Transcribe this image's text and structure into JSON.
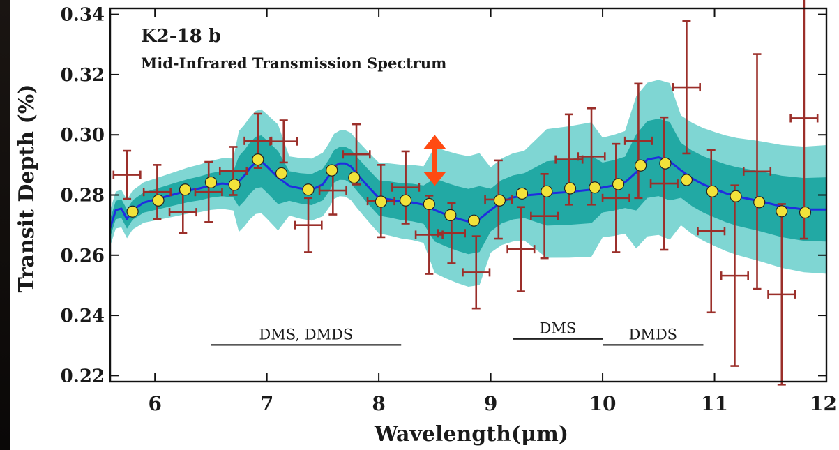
{
  "colors": {
    "errorbar": "#9b2f2a",
    "model_line": "#1f2de0",
    "band_outer": "#7fd6d3",
    "band_inner": "#22a9a4",
    "binned_point": "#f2e33a",
    "arrow": "#ff4a12"
  },
  "chart_data": {
    "type": "scatter",
    "title": "K2-18 b",
    "subtitle": "Mid-Infrared Transmission Spectrum",
    "xlabel": "Wavelength(μm)",
    "ylabel": "Transit Depth (%)",
    "xlim": [
      5.6,
      12.0
    ],
    "ylim": [
      0.218,
      0.342
    ],
    "x_ticks": [
      "6",
      "7",
      "8",
      "9",
      "10",
      "11",
      "12"
    ],
    "y_ticks": [
      "0.22",
      "0.24",
      "0.26",
      "0.28",
      "0.30",
      "0.32",
      "0.34"
    ],
    "grid": false,
    "series": [
      {
        "kind": "observed-errorbars",
        "points": [
          {
            "x": 5.75,
            "y": 0.2867,
            "xerr": 0.12,
            "yerr": 0.008
          },
          {
            "x": 6.02,
            "y": 0.281,
            "xerr": 0.12,
            "yerr": 0.009
          },
          {
            "x": 6.25,
            "y": 0.2743,
            "xerr": 0.12,
            "yerr": 0.007
          },
          {
            "x": 6.48,
            "y": 0.281,
            "xerr": 0.12,
            "yerr": 0.01
          },
          {
            "x": 6.7,
            "y": 0.288,
            "xerr": 0.12,
            "yerr": 0.008
          },
          {
            "x": 6.92,
            "y": 0.298,
            "xerr": 0.12,
            "yerr": 0.009
          },
          {
            "x": 7.15,
            "y": 0.2978,
            "xerr": 0.12,
            "yerr": 0.007
          },
          {
            "x": 7.37,
            "y": 0.27,
            "xerr": 0.12,
            "yerr": 0.009
          },
          {
            "x": 7.59,
            "y": 0.2815,
            "xerr": 0.12,
            "yerr": 0.008
          },
          {
            "x": 7.8,
            "y": 0.2935,
            "xerr": 0.12,
            "yerr": 0.01
          },
          {
            "x": 8.02,
            "y": 0.278,
            "xerr": 0.12,
            "yerr": 0.012
          },
          {
            "x": 8.24,
            "y": 0.2825,
            "xerr": 0.12,
            "yerr": 0.012
          },
          {
            "x": 8.45,
            "y": 0.2668,
            "xerr": 0.12,
            "yerr": 0.013
          },
          {
            "x": 8.65,
            "y": 0.2673,
            "xerr": 0.12,
            "yerr": 0.01
          },
          {
            "x": 8.87,
            "y": 0.2543,
            "xerr": 0.12,
            "yerr": 0.012
          },
          {
            "x": 9.07,
            "y": 0.2785,
            "xerr": 0.12,
            "yerr": 0.013
          },
          {
            "x": 9.27,
            "y": 0.262,
            "xerr": 0.12,
            "yerr": 0.014
          },
          {
            "x": 9.48,
            "y": 0.273,
            "xerr": 0.12,
            "yerr": 0.014
          },
          {
            "x": 9.7,
            "y": 0.2918,
            "xerr": 0.12,
            "yerr": 0.015
          },
          {
            "x": 9.9,
            "y": 0.2928,
            "xerr": 0.12,
            "yerr": 0.016
          },
          {
            "x": 10.12,
            "y": 0.279,
            "xerr": 0.12,
            "yerr": 0.018
          },
          {
            "x": 10.32,
            "y": 0.298,
            "xerr": 0.12,
            "yerr": 0.019
          },
          {
            "x": 10.55,
            "y": 0.2838,
            "xerr": 0.12,
            "yerr": 0.022
          },
          {
            "x": 10.75,
            "y": 0.3158,
            "xerr": 0.12,
            "yerr": 0.022
          },
          {
            "x": 10.97,
            "y": 0.268,
            "xerr": 0.12,
            "yerr": 0.027
          },
          {
            "x": 11.18,
            "y": 0.2532,
            "xerr": 0.12,
            "yerr": 0.03
          },
          {
            "x": 11.38,
            "y": 0.2878,
            "xerr": 0.12,
            "yerr": 0.039
          },
          {
            "x": 11.6,
            "y": 0.247,
            "xerr": 0.12,
            "yerr": 0.03
          },
          {
            "x": 11.8,
            "y": 0.3055,
            "xerr": 0.12,
            "yerr": 0.04
          }
        ]
      },
      {
        "kind": "model-binned",
        "x": [
          5.8,
          6.03,
          6.27,
          6.5,
          6.71,
          6.92,
          7.13,
          7.37,
          7.58,
          7.78,
          8.02,
          8.24,
          8.45,
          8.64,
          8.85,
          9.08,
          9.28,
          9.5,
          9.71,
          9.93,
          10.14,
          10.34,
          10.56,
          10.75,
          10.98,
          11.19,
          11.4,
          11.6,
          11.81
        ],
        "y": [
          0.2745,
          0.2782,
          0.2818,
          0.2842,
          0.2834,
          0.2918,
          0.2872,
          0.2818,
          0.2882,
          0.2858,
          0.2778,
          0.2782,
          0.277,
          0.2733,
          0.2715,
          0.2782,
          0.2805,
          0.2812,
          0.2822,
          0.2825,
          0.2836,
          0.2898,
          0.2905,
          0.285,
          0.2812,
          0.2796,
          0.2776,
          0.2746,
          0.2742
        ]
      },
      {
        "kind": "model-median",
        "x": [
          5.6,
          5.65,
          5.7,
          5.75,
          5.8,
          5.9,
          6.0,
          6.1,
          6.2,
          6.3,
          6.4,
          6.5,
          6.6,
          6.7,
          6.75,
          6.8,
          6.85,
          6.9,
          6.95,
          7.0,
          7.1,
          7.2,
          7.3,
          7.4,
          7.5,
          7.55,
          7.6,
          7.65,
          7.7,
          7.75,
          7.8,
          7.9,
          8.0,
          8.1,
          8.2,
          8.3,
          8.4,
          8.5,
          8.6,
          8.7,
          8.8,
          8.9,
          9.0,
          9.1,
          9.2,
          9.3,
          9.5,
          9.7,
          9.9,
          10.0,
          10.1,
          10.2,
          10.3,
          10.4,
          10.5,
          10.6,
          10.7,
          10.8,
          10.9,
          11.0,
          11.1,
          11.2,
          11.4,
          11.6,
          11.8,
          12.0
        ],
        "y": [
          0.269,
          0.275,
          0.2755,
          0.272,
          0.275,
          0.2775,
          0.2785,
          0.2795,
          0.2805,
          0.2815,
          0.2822,
          0.2832,
          0.2838,
          0.2835,
          0.2845,
          0.2865,
          0.289,
          0.2908,
          0.2912,
          0.2895,
          0.2858,
          0.283,
          0.2822,
          0.2818,
          0.2835,
          0.2862,
          0.2895,
          0.2905,
          0.2905,
          0.2895,
          0.2872,
          0.283,
          0.279,
          0.2785,
          0.2778,
          0.2775,
          0.2768,
          0.275,
          0.2735,
          0.2722,
          0.2712,
          0.272,
          0.275,
          0.2778,
          0.2792,
          0.2798,
          0.2805,
          0.281,
          0.2818,
          0.2825,
          0.2832,
          0.2842,
          0.2875,
          0.2918,
          0.2925,
          0.2912,
          0.2882,
          0.2855,
          0.2835,
          0.282,
          0.2806,
          0.2795,
          0.278,
          0.2762,
          0.2752,
          0.2752
        ]
      }
    ],
    "annotations": [
      {
        "text": "DMS, DMDS",
        "x_start": 6.5,
        "x_end": 8.2,
        "y": 0.2302
      },
      {
        "text": "DMS",
        "x_start": 9.2,
        "x_end": 10.0,
        "y": 0.2322
      },
      {
        "text": "DMDS",
        "x_start": 10.0,
        "x_end": 10.9,
        "y": 0.2302
      }
    ],
    "arrow_marker": {
      "x": 8.5,
      "y_top": 0.3,
      "y_bottom": 0.283
    }
  }
}
